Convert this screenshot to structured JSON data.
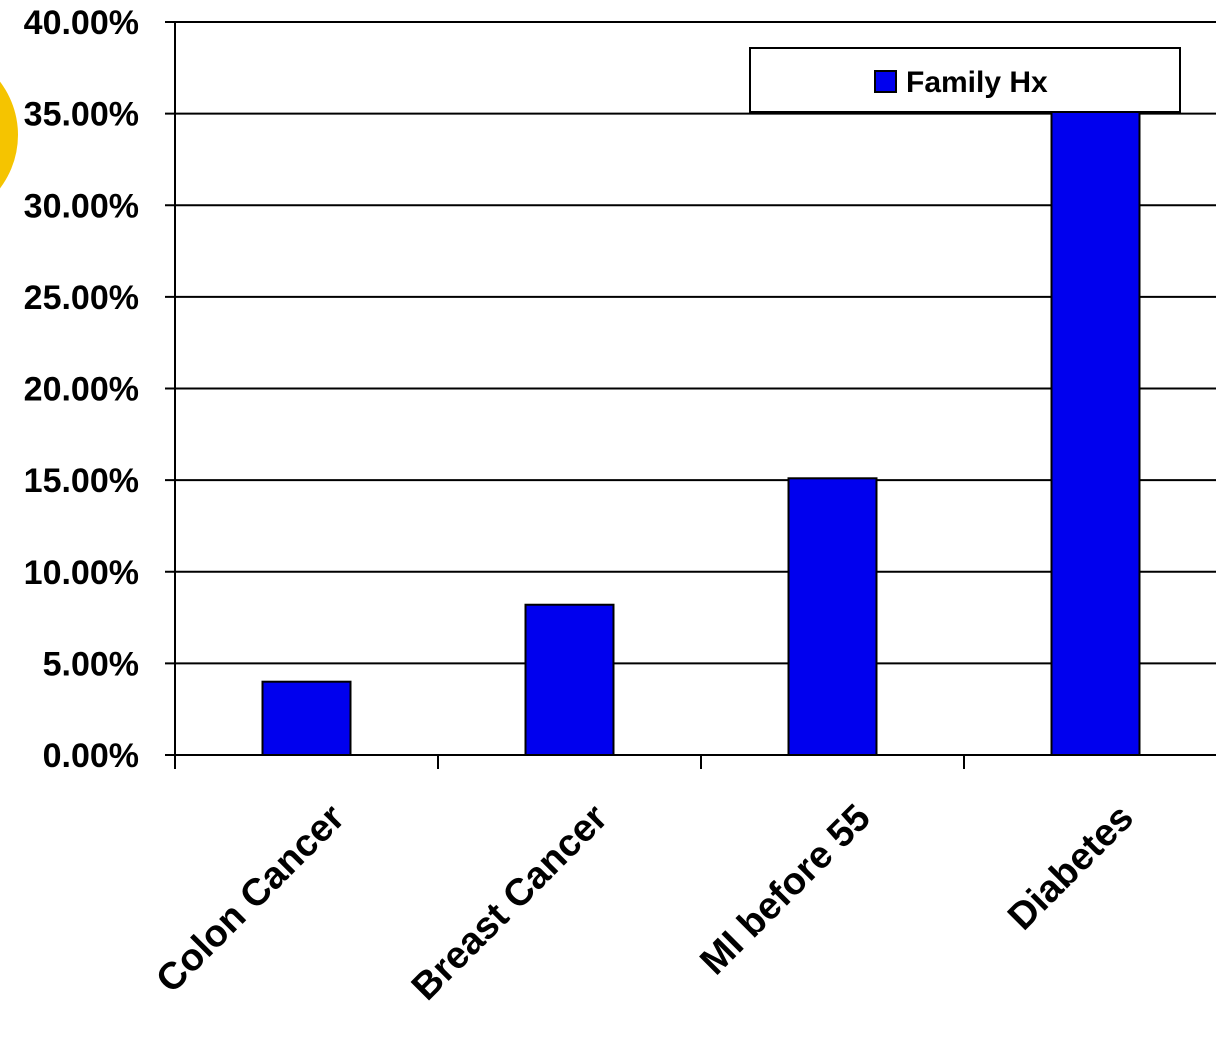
{
  "chart_data": {
    "type": "bar",
    "categories": [
      "Colon Cancer",
      "Breast Cancer",
      "MI before 55",
      "Diabetes"
    ],
    "series": [
      {
        "name": "Family Hx",
        "values": [
          4.0,
          8.2,
          15.1,
          35.6
        ],
        "color": "#0000ee"
      }
    ],
    "y_ticks": [
      "0.00%",
      "5.00%",
      "10.00%",
      "15.00%",
      "20.00%",
      "25.00%",
      "30.00%",
      "35.00%",
      "40.00%"
    ],
    "ylim": [
      0,
      40
    ],
    "y_unit": "percent",
    "grid": true,
    "legend_position": "top-right",
    "decoration_color": "#f5c400"
  }
}
